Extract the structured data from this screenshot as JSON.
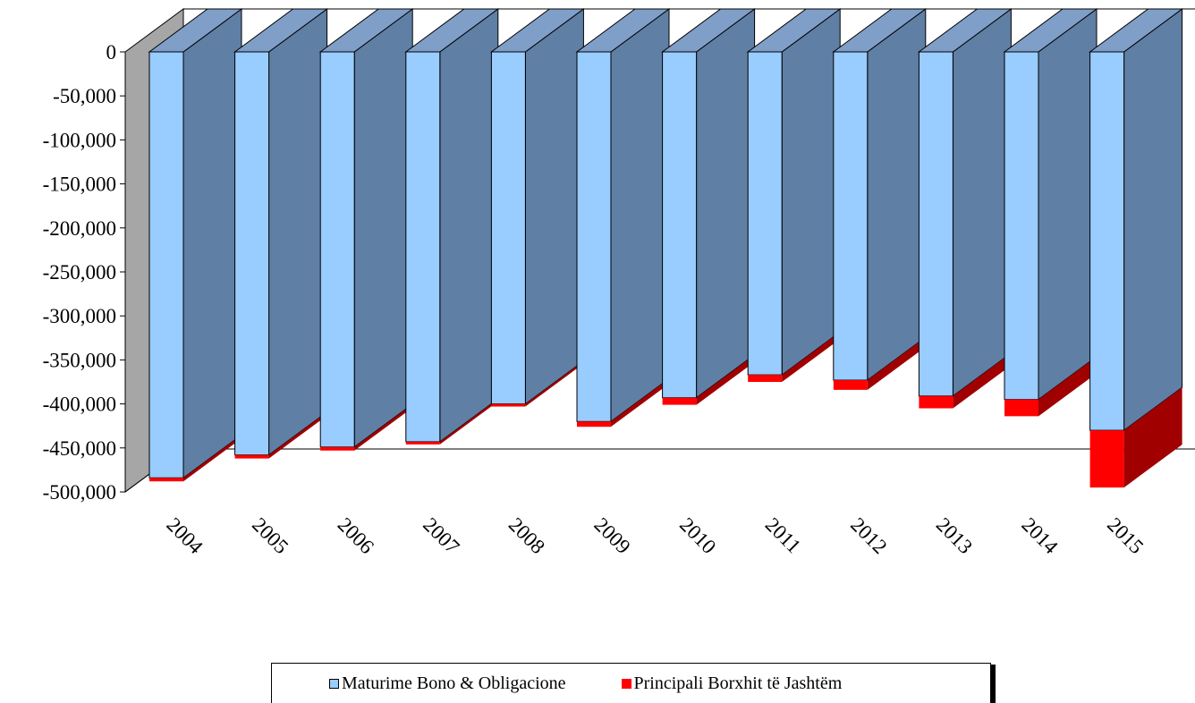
{
  "chart_data": {
    "type": "bar",
    "stacked": true,
    "style": "3d-column",
    "categories": [
      "2004",
      "2005",
      "2006",
      "2007",
      "2008",
      "2009",
      "2010",
      "2011",
      "2012",
      "2013",
      "2014",
      "2015"
    ],
    "series": [
      {
        "name": "Maturime Bono & Obligacione",
        "color": "#99ccff",
        "values": [
          -484000,
          -458000,
          -449000,
          -443000,
          -400000,
          -420000,
          -393000,
          -367000,
          -373000,
          -391000,
          -395000,
          -430000
        ]
      },
      {
        "name": "Principali Borxhit të Jashtëm",
        "color": "#ff0000",
        "values": [
          -4000,
          -4000,
          -4000,
          -3000,
          -3000,
          -6000,
          -8000,
          -8000,
          -11000,
          -14000,
          -19000,
          -65000
        ]
      }
    ],
    "ylim": [
      -500000,
      0
    ],
    "yticks": [
      0,
      -50000,
      -100000,
      -150000,
      -200000,
      -250000,
      -300000,
      -350000,
      -400000,
      -450000,
      -500000
    ],
    "ytick_labels": [
      "0",
      "-50,000",
      "-100,000",
      "-150,000",
      "-200,000",
      "-250,000",
      "-300,000",
      "-350,000",
      "-400,000",
      "-450,000",
      "-500,000"
    ],
    "legend_position": "bottom",
    "grid": false,
    "title": "",
    "xlabel": "",
    "ylabel": ""
  },
  "colors": {
    "bar_side": "#5f7fa5",
    "bar_top": "#7f9fc8",
    "red_side": "#a00000",
    "wall_side": "#a6a6a6"
  }
}
